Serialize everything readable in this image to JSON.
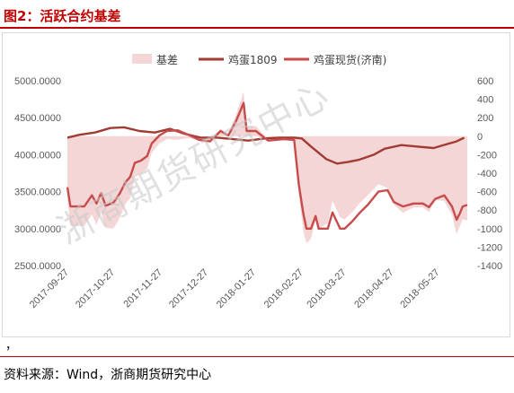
{
  "header": {
    "title": "图2：活跃合约基差"
  },
  "footer": {
    "comma": "，",
    "source": "资料来源：Wind，浙商期货研究中心"
  },
  "watermark": "浙商期货研究中心",
  "colors": {
    "title": "#c00000",
    "basis_fill": "#f4d6d6",
    "futures_line": "#a23b32",
    "spot_line": "#c84b4b",
    "axis_text": "#595959",
    "grid": "#d9d9d9"
  },
  "chart_data": {
    "type": "line",
    "legend": {
      "position": "top",
      "items": [
        {
          "label": "基差",
          "kind": "area",
          "color": "#f4d6d6"
        },
        {
          "label": "鸡蛋1809",
          "kind": "line",
          "color": "#a23b32"
        },
        {
          "label": "鸡蛋现货(济南)",
          "kind": "line",
          "color": "#c84b4b"
        }
      ]
    },
    "x_ticks": [
      "2017-09-27",
      "2017-10-27",
      "2017-11-27",
      "2017-12-27",
      "2018-01-27",
      "2018-02-27",
      "2018-03-27",
      "2018-04-27",
      "2018-05-27"
    ],
    "x_range": [
      "2017-09-27",
      "2018-06-15"
    ],
    "y_left": {
      "ticks": [
        "2500.0000",
        "3000.0000",
        "3500.0000",
        "4000.0000",
        "4500.0000",
        "5000.0000"
      ],
      "range": [
        2500,
        5000
      ]
    },
    "y_right": {
      "ticks": [
        "-1400",
        "-1200",
        "-1000",
        "-800",
        "-600",
        "-400",
        "-200",
        "0",
        "200",
        "400",
        "600"
      ],
      "range": [
        -1400,
        600
      ]
    },
    "series": [
      {
        "name": "鸡蛋1809",
        "axis": "left",
        "color": "#a23b32",
        "points": [
          [
            "2017-09-27",
            4230
          ],
          [
            "2017-10-05",
            4270
          ],
          [
            "2017-10-15",
            4300
          ],
          [
            "2017-10-25",
            4360
          ],
          [
            "2017-11-03",
            4370
          ],
          [
            "2017-11-13",
            4320
          ],
          [
            "2017-11-23",
            4300
          ],
          [
            "2017-12-03",
            4350
          ],
          [
            "2017-12-13",
            4280
          ],
          [
            "2017-12-23",
            4230
          ],
          [
            "2018-01-03",
            4230
          ],
          [
            "2018-01-13",
            4210
          ],
          [
            "2018-01-23",
            4190
          ],
          [
            "2018-02-03",
            4220
          ],
          [
            "2018-02-13",
            4230
          ],
          [
            "2018-02-22",
            4230
          ],
          [
            "2018-02-27",
            4220
          ],
          [
            "2018-03-05",
            4110
          ],
          [
            "2018-03-15",
            3940
          ],
          [
            "2018-03-22",
            3880
          ],
          [
            "2018-03-29",
            3900
          ],
          [
            "2018-04-05",
            3930
          ],
          [
            "2018-04-15",
            4000
          ],
          [
            "2018-04-22",
            4080
          ],
          [
            "2018-05-03",
            4130
          ],
          [
            "2018-05-13",
            4110
          ],
          [
            "2018-05-24",
            4090
          ],
          [
            "2018-06-03",
            4150
          ],
          [
            "2018-06-08",
            4180
          ],
          [
            "2018-06-13",
            4230
          ]
        ]
      },
      {
        "name": "鸡蛋现货(济南)",
        "axis": "left",
        "color": "#c84b4b",
        "points": [
          [
            "2017-09-27",
            3560
          ],
          [
            "2017-09-29",
            3300
          ],
          [
            "2017-10-08",
            3300
          ],
          [
            "2017-10-13",
            3450
          ],
          [
            "2017-10-16",
            3340
          ],
          [
            "2017-10-19",
            3480
          ],
          [
            "2017-10-22",
            3310
          ],
          [
            "2017-10-27",
            3350
          ],
          [
            "2017-10-31",
            3470
          ],
          [
            "2017-11-04",
            3630
          ],
          [
            "2017-11-07",
            3700
          ],
          [
            "2017-11-10",
            3890
          ],
          [
            "2017-11-14",
            3920
          ],
          [
            "2017-11-18",
            3980
          ],
          [
            "2017-11-21",
            4150
          ],
          [
            "2017-11-26",
            4260
          ],
          [
            "2017-12-01",
            4320
          ],
          [
            "2017-12-08",
            4330
          ],
          [
            "2017-12-15",
            4270
          ],
          [
            "2017-12-22",
            4200
          ],
          [
            "2017-12-29",
            4180
          ],
          [
            "2018-01-05",
            4320
          ],
          [
            "2018-01-10",
            4260
          ],
          [
            "2018-01-15",
            4450
          ],
          [
            "2018-01-18",
            4600
          ],
          [
            "2018-01-20",
            4700
          ],
          [
            "2018-01-22",
            4320
          ],
          [
            "2018-01-28",
            4320
          ],
          [
            "2018-02-05",
            4190
          ],
          [
            "2018-02-10",
            4200
          ],
          [
            "2018-02-15",
            4210
          ],
          [
            "2018-02-22",
            4200
          ],
          [
            "2018-02-25",
            3600
          ],
          [
            "2018-02-28",
            3200
          ],
          [
            "2018-03-02",
            3000
          ],
          [
            "2018-03-05",
            3000
          ],
          [
            "2018-03-08",
            3170
          ],
          [
            "2018-03-10",
            3000
          ],
          [
            "2018-03-16",
            3000
          ],
          [
            "2018-03-19",
            3220
          ],
          [
            "2018-03-24",
            3000
          ],
          [
            "2018-03-27",
            3000
          ],
          [
            "2018-04-01",
            3100
          ],
          [
            "2018-04-06",
            3220
          ],
          [
            "2018-04-11",
            3320
          ],
          [
            "2018-04-18",
            3500
          ],
          [
            "2018-04-24",
            3520
          ],
          [
            "2018-04-28",
            3360
          ],
          [
            "2018-05-04",
            3300
          ],
          [
            "2018-05-11",
            3340
          ],
          [
            "2018-05-17",
            3340
          ],
          [
            "2018-05-21",
            3290
          ],
          [
            "2018-05-25",
            3400
          ],
          [
            "2018-05-31",
            3450
          ],
          [
            "2018-06-05",
            3300
          ],
          [
            "2018-06-08",
            3120
          ],
          [
            "2018-06-10",
            3200
          ],
          [
            "2018-06-12",
            3300
          ],
          [
            "2018-06-15",
            3320
          ]
        ]
      },
      {
        "name": "基差",
        "axis": "right",
        "color": "#f4d6d6",
        "points": [
          [
            "2017-09-27",
            -680
          ],
          [
            "2017-09-29",
            -970
          ],
          [
            "2017-10-08",
            -970
          ],
          [
            "2017-10-13",
            -850
          ],
          [
            "2017-10-16",
            -960
          ],
          [
            "2017-10-19",
            -820
          ],
          [
            "2017-10-22",
            -990
          ],
          [
            "2017-10-27",
            -1000
          ],
          [
            "2017-10-31",
            -890
          ],
          [
            "2017-11-04",
            -730
          ],
          [
            "2017-11-07",
            -670
          ],
          [
            "2017-11-10",
            -440
          ],
          [
            "2017-11-14",
            -410
          ],
          [
            "2017-11-18",
            -350
          ],
          [
            "2017-11-21",
            -180
          ],
          [
            "2017-11-26",
            -80
          ],
          [
            "2017-12-01",
            -30
          ],
          [
            "2017-12-08",
            -40
          ],
          [
            "2017-12-15",
            -20
          ],
          [
            "2017-12-22",
            -40
          ],
          [
            "2017-12-29",
            -50
          ],
          [
            "2018-01-05",
            80
          ],
          [
            "2018-01-10",
            20
          ],
          [
            "2018-01-15",
            230
          ],
          [
            "2018-01-18",
            380
          ],
          [
            "2018-01-20",
            480
          ],
          [
            "2018-01-22",
            100
          ],
          [
            "2018-01-28",
            110
          ],
          [
            "2018-02-05",
            -30
          ],
          [
            "2018-02-10",
            -20
          ],
          [
            "2018-02-15",
            -20
          ],
          [
            "2018-02-22",
            -30
          ],
          [
            "2018-02-25",
            -630
          ],
          [
            "2018-02-28",
            -1030
          ],
          [
            "2018-03-02",
            -1160
          ],
          [
            "2018-03-05",
            -1110
          ],
          [
            "2018-03-08",
            -900
          ],
          [
            "2018-03-10",
            -1000
          ],
          [
            "2018-03-16",
            -940
          ],
          [
            "2018-03-19",
            -700
          ],
          [
            "2018-03-24",
            -880
          ],
          [
            "2018-03-27",
            -900
          ],
          [
            "2018-04-01",
            -820
          ],
          [
            "2018-04-06",
            -720
          ],
          [
            "2018-04-11",
            -640
          ],
          [
            "2018-04-18",
            -520
          ],
          [
            "2018-04-24",
            -560
          ],
          [
            "2018-04-28",
            -740
          ],
          [
            "2018-05-04",
            -830
          ],
          [
            "2018-05-11",
            -770
          ],
          [
            "2018-05-17",
            -770
          ],
          [
            "2018-05-21",
            -820
          ],
          [
            "2018-05-25",
            -690
          ],
          [
            "2018-05-31",
            -700
          ],
          [
            "2018-06-05",
            -850
          ],
          [
            "2018-06-08",
            -1060
          ],
          [
            "2018-06-10",
            -980
          ],
          [
            "2018-06-12",
            -900
          ],
          [
            "2018-06-15",
            -910
          ]
        ]
      }
    ],
    "grid": false
  }
}
